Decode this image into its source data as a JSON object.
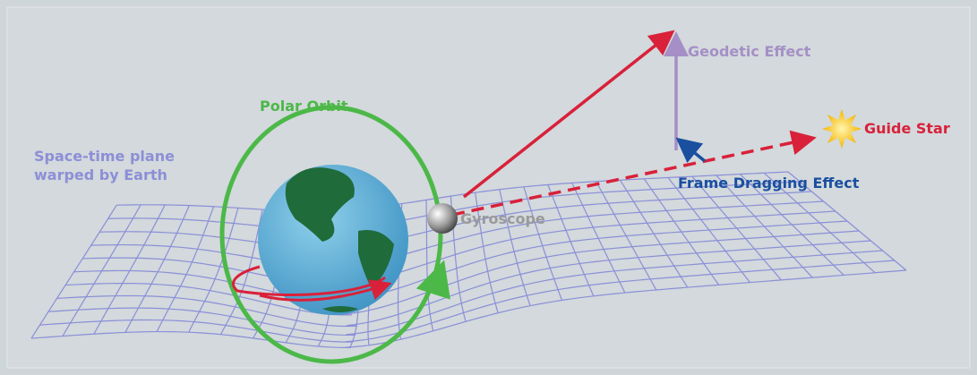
{
  "labels": {
    "spacetime_plane": [
      "Space-time plane",
      "warped by Earth"
    ],
    "polar_orbit": "Polar Orbit",
    "geodetic_effect": "Geodetic Effect",
    "guide_star": "Guide Star",
    "frame_dragging": "Frame Dragging Effect",
    "gyroscope": "Gyroscope"
  }
}
